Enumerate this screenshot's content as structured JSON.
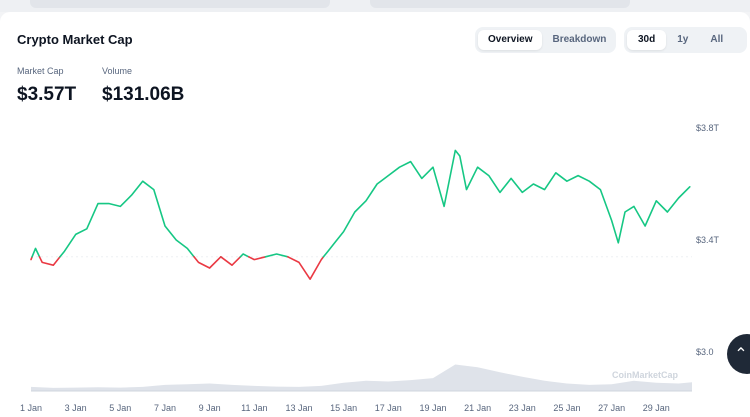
{
  "card": {
    "title": "Crypto Market Cap",
    "view_options": [
      "Overview",
      "Breakdown"
    ],
    "active_view": "Overview",
    "range_options": [
      "30d",
      "1y",
      "All"
    ],
    "active_range": "30d"
  },
  "stats": {
    "market_cap_label": "Market Cap",
    "market_cap_value": "$3.57T",
    "volume_label": "Volume",
    "volume_value": "$131.06B"
  },
  "watermark": "CoinMarketCap",
  "colors": {
    "up": "#16c784",
    "down": "#ea3943",
    "volume": "#dfe3ea",
    "grid": "#eef0f3"
  },
  "chart_data": {
    "type": "line",
    "xlabel": "",
    "ylabel": "",
    "y_ticks": [
      {
        "label": "$3.8T",
        "value": 3.8
      },
      {
        "label": "$3.4T",
        "value": 3.4
      },
      {
        "label": "$3.0",
        "value": 3.0
      }
    ],
    "ylim": [
      3.0,
      3.8
    ],
    "x_ticks": [
      {
        "label": "1 Jan",
        "day": 1
      },
      {
        "label": "3 Jan",
        "day": 3
      },
      {
        "label": "5 Jan",
        "day": 5
      },
      {
        "label": "7 Jan",
        "day": 7
      },
      {
        "label": "9 Jan",
        "day": 9
      },
      {
        "label": "11 Jan",
        "day": 11
      },
      {
        "label": "13 Jan",
        "day": 13
      },
      {
        "label": "15 Jan",
        "day": 15
      },
      {
        "label": "17 Jan",
        "day": 17
      },
      {
        "label": "19 Jan",
        "day": 19
      },
      {
        "label": "21 Jan",
        "day": 21
      },
      {
        "label": "23 Jan",
        "day": 23
      },
      {
        "label": "25 Jan",
        "day": 25
      },
      {
        "label": "27 Jan",
        "day": 27
      },
      {
        "label": "29 Jan",
        "day": 29
      }
    ],
    "xlim": [
      1,
      30.6
    ],
    "baseline": 3.34,
    "grid": false,
    "market_cap": {
      "x": [
        1.0,
        1.2,
        1.5,
        2.0,
        2.5,
        3.0,
        3.5,
        4.0,
        4.5,
        5.0,
        5.5,
        6.0,
        6.5,
        7.0,
        7.5,
        8.0,
        8.5,
        9.0,
        9.5,
        10.0,
        10.5,
        11.0,
        11.5,
        12.0,
        12.5,
        13.0,
        13.5,
        14.0,
        14.3,
        14.6,
        15.0,
        15.5,
        16.0,
        16.5,
        17.0,
        17.5,
        18.0,
        18.5,
        19.0,
        19.5,
        20.0,
        20.2,
        20.5,
        21.0,
        21.5,
        22.0,
        22.5,
        23.0,
        23.5,
        24.0,
        24.5,
        25.0,
        25.5,
        26.0,
        26.5,
        27.0,
        27.3,
        27.6,
        28.0,
        28.5,
        29.0,
        29.5,
        30.0,
        30.5
      ],
      "y": [
        3.33,
        3.37,
        3.32,
        3.31,
        3.36,
        3.42,
        3.44,
        3.53,
        3.53,
        3.52,
        3.56,
        3.61,
        3.58,
        3.45,
        3.4,
        3.37,
        3.32,
        3.3,
        3.34,
        3.31,
        3.35,
        3.33,
        3.34,
        3.35,
        3.34,
        3.32,
        3.26,
        3.33,
        3.36,
        3.39,
        3.43,
        3.5,
        3.54,
        3.6,
        3.63,
        3.66,
        3.68,
        3.62,
        3.66,
        3.52,
        3.72,
        3.7,
        3.58,
        3.66,
        3.63,
        3.57,
        3.62,
        3.57,
        3.6,
        3.58,
        3.64,
        3.61,
        3.63,
        3.61,
        3.58,
        3.47,
        3.39,
        3.5,
        3.52,
        3.45,
        3.54,
        3.5,
        3.55,
        3.59
      ]
    },
    "volume": {
      "x": [
        1,
        2,
        3,
        4,
        5,
        6,
        7,
        8,
        9,
        10,
        11,
        12,
        13,
        14,
        15,
        16,
        17,
        18,
        19,
        20,
        21,
        22,
        23,
        24,
        25,
        26,
        27,
        28,
        29,
        30,
        30.6
      ],
      "y": [
        0.12,
        0.09,
        0.1,
        0.11,
        0.1,
        0.12,
        0.18,
        0.2,
        0.22,
        0.18,
        0.15,
        0.13,
        0.12,
        0.15,
        0.24,
        0.3,
        0.28,
        0.32,
        0.38,
        0.78,
        0.7,
        0.55,
        0.42,
        0.3,
        0.22,
        0.18,
        0.2,
        0.3,
        0.24,
        0.22,
        0.26
      ]
    }
  }
}
